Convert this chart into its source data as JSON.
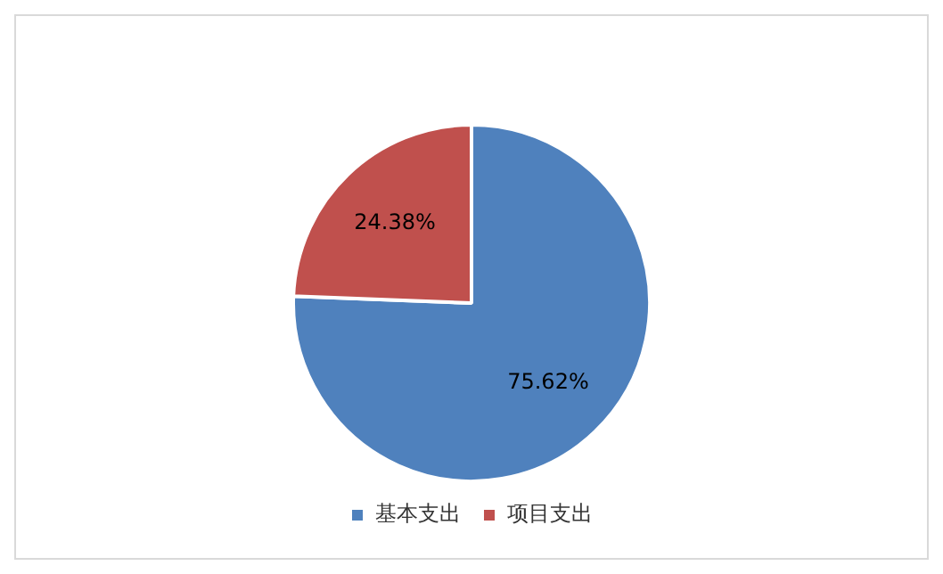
{
  "chart_data": {
    "type": "pie",
    "categories": [
      "基本支出",
      "项目支出"
    ],
    "values": [
      75.62,
      24.38
    ],
    "colors": [
      "#4f81bd",
      "#c0504d"
    ],
    "value_labels": [
      "75.62%",
      "24.38%"
    ],
    "legend": "bottom"
  }
}
